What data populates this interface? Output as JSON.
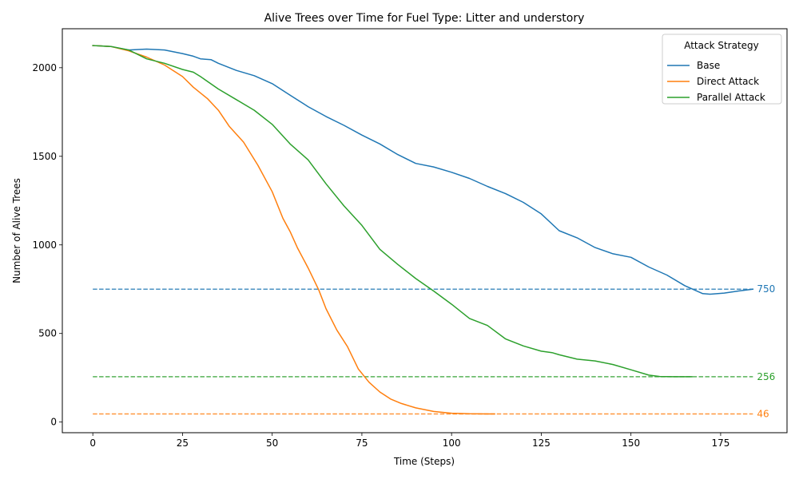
{
  "chart_data": {
    "type": "line",
    "title": "Alive Trees over Time for Fuel Type: Litter and understory",
    "xlabel": "Time (Steps)",
    "ylabel": "Number of Alive Trees",
    "xlim": [
      -8.5,
      193.5
    ],
    "ylim": [
      -60,
      2220
    ],
    "xticks": [
      0,
      25,
      50,
      75,
      100,
      125,
      150,
      175
    ],
    "yticks": [
      0,
      500,
      1000,
      1500,
      2000
    ],
    "grid": false,
    "legend": {
      "title": "Attack Strategy",
      "placement": "top-right"
    },
    "series": [
      {
        "name": "Base",
        "color": "#1f77b4",
        "x": [
          0,
          5,
          10,
          15,
          20,
          25,
          28,
          30,
          33,
          35,
          40,
          45,
          50,
          55,
          60,
          65,
          70,
          75,
          80,
          85,
          90,
          95,
          100,
          105,
          110,
          115,
          120,
          125,
          130,
          135,
          140,
          145,
          150,
          155,
          160,
          165,
          170,
          172,
          176,
          180,
          184
        ],
        "y": [
          2125,
          2120,
          2100,
          2105,
          2100,
          2080,
          2065,
          2050,
          2045,
          2025,
          1985,
          1955,
          1910,
          1845,
          1780,
          1725,
          1675,
          1620,
          1570,
          1510,
          1460,
          1440,
          1410,
          1375,
          1330,
          1290,
          1240,
          1175,
          1080,
          1040,
          985,
          950,
          930,
          875,
          830,
          770,
          725,
          722,
          728,
          740,
          750
        ]
      },
      {
        "name": "Direct Attack",
        "color": "#ff7f0e",
        "x": [
          0,
          5,
          10,
          15,
          20,
          25,
          28,
          32,
          35,
          38,
          42,
          46,
          50,
          53,
          55,
          57,
          60,
          63,
          65,
          68,
          71,
          74,
          77,
          80,
          83,
          86,
          90,
          95,
          100,
          105,
          110,
          112
        ],
        "y": [
          2125,
          2120,
          2095,
          2060,
          2015,
          1950,
          1890,
          1825,
          1760,
          1670,
          1580,
          1450,
          1300,
          1150,
          1075,
          985,
          870,
          745,
          640,
          520,
          425,
          300,
          225,
          170,
          130,
          105,
          80,
          60,
          50,
          47,
          46,
          46
        ]
      },
      {
        "name": "Parallel Attack",
        "color": "#2ca02c",
        "x": [
          0,
          5,
          10,
          15,
          20,
          25,
          28,
          30,
          35,
          40,
          45,
          50,
          55,
          60,
          65,
          70,
          75,
          80,
          85,
          90,
          95,
          100,
          105,
          110,
          115,
          120,
          125,
          128,
          130,
          135,
          140,
          145,
          150,
          155,
          158,
          162,
          167
        ],
        "y": [
          2125,
          2120,
          2100,
          2050,
          2025,
          1990,
          1975,
          1950,
          1880,
          1820,
          1760,
          1680,
          1570,
          1480,
          1345,
          1220,
          1110,
          975,
          890,
          810,
          740,
          665,
          585,
          545,
          470,
          430,
          400,
          392,
          380,
          355,
          345,
          325,
          295,
          265,
          257,
          256,
          256
        ]
      }
    ],
    "reference_lines": [
      {
        "value": 750,
        "label": "750",
        "color": "#1f77b4"
      },
      {
        "value": 256,
        "label": "256",
        "color": "#2ca02c"
      },
      {
        "value": 46,
        "label": "46",
        "color": "#ff7f0e"
      }
    ],
    "reference_x_range": [
      0,
      184
    ]
  }
}
